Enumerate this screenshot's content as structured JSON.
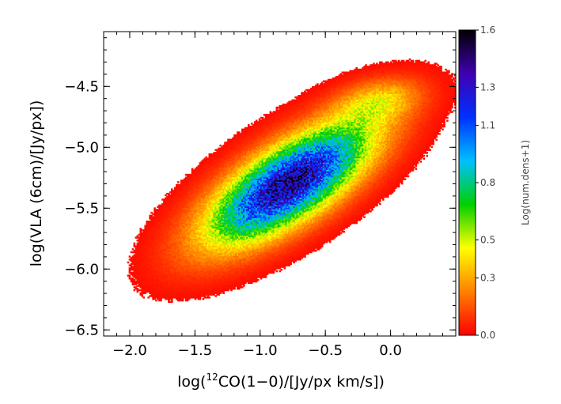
{
  "chart_data": {
    "type": "heatmap",
    "title": "",
    "xlabel_parts": {
      "pre": "log(",
      "sup": "12",
      "post": "CO(1−0)/[Jy/px km/s])"
    },
    "ylabel": "log(VLA (6cm)/[Jy/px])",
    "xlim": [
      -2.2,
      0.5
    ],
    "ylim": [
      -6.55,
      -4.05
    ],
    "x_ticks": [
      -2.0,
      -1.5,
      -1.0,
      -0.5,
      0.0
    ],
    "x_tick_labels": [
      "−2.0",
      "−1.5",
      "−1.0",
      "−0.5",
      "0.0"
    ],
    "y_ticks": [
      -6.5,
      -6.0,
      -5.5,
      -5.0,
      -4.5
    ],
    "y_tick_labels": [
      "−6.5",
      "−6.0",
      "−5.5",
      "−5.0",
      "−4.5"
    ],
    "colorbar": {
      "label": "Log(num.dens+1)",
      "range": [
        0.0,
        1.6
      ],
      "ticks": [
        0.0,
        0.3,
        0.5,
        0.8,
        1.1,
        1.3,
        1.6
      ],
      "tick_labels": [
        "0.0",
        "0.3",
        "0.5",
        "0.8",
        "1.1",
        "1.3",
        "1.6"
      ],
      "colormap": [
        "#ff0000",
        "#ff8000",
        "#ffff00",
        "#00d000",
        "#00c0ff",
        "#0030ff",
        "#4000b0",
        "#000000"
      ]
    },
    "density_model": {
      "clusters": [
        {
          "x": -0.78,
          "y": -5.3,
          "sx": 0.42,
          "sy": 0.33,
          "rho": 0.72,
          "peak": 1.45
        },
        {
          "x": -0.1,
          "y": -4.62,
          "sx": 0.22,
          "sy": 0.12,
          "rho": 0.3,
          "peak": 0.3
        }
      ],
      "threshold": 0.02
    }
  }
}
